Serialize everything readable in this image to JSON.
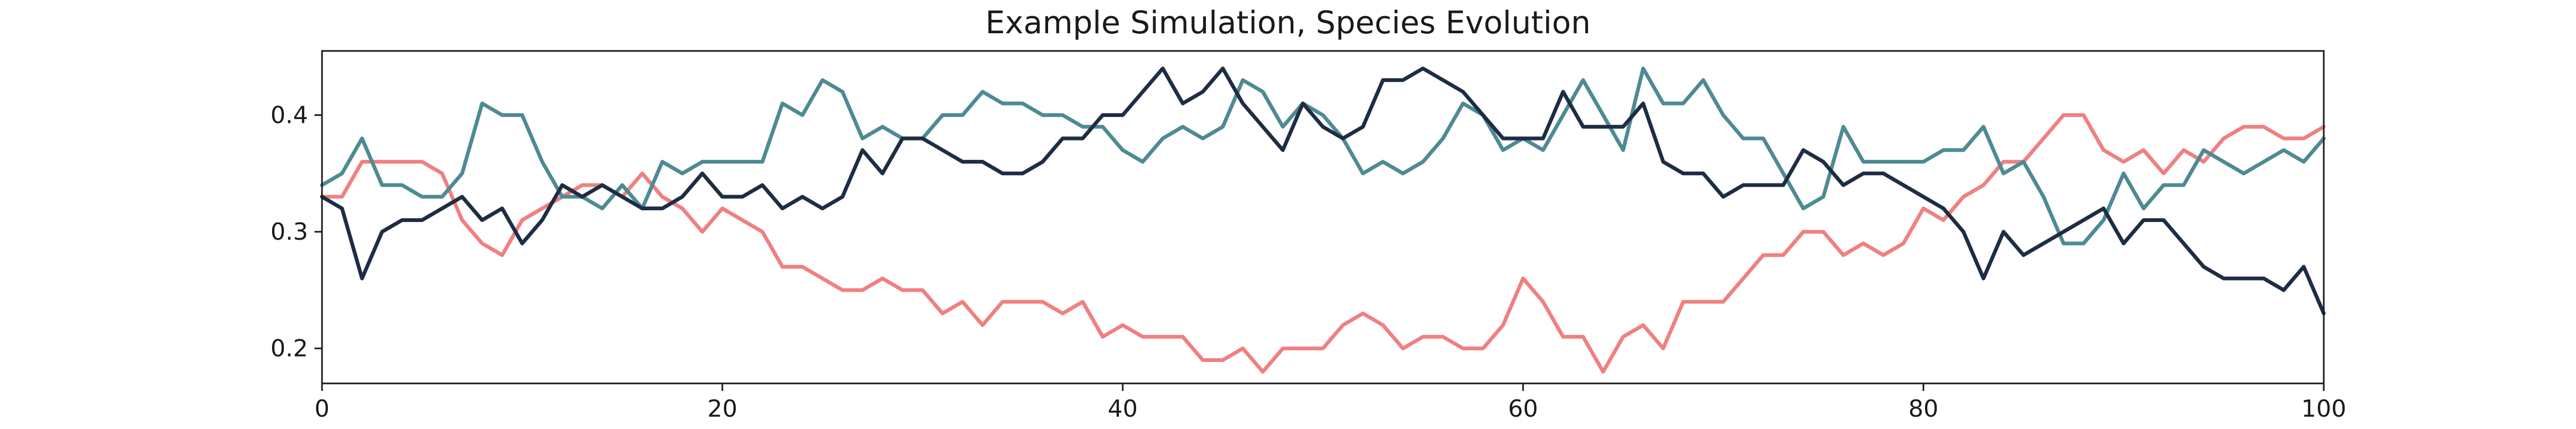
{
  "chart_data": {
    "type": "line",
    "title": "Example Simulation, Species Evolution",
    "xlabel": "",
    "ylabel": "",
    "xlim": [
      0,
      100
    ],
    "ylim": [
      0.17,
      0.455
    ],
    "xticks": [
      0,
      20,
      40,
      60,
      80,
      100
    ],
    "xtick_labels": [
      "0",
      "20",
      "40",
      "60",
      "80",
      "100"
    ],
    "yticks": [
      0.2,
      0.3,
      0.4
    ],
    "ytick_labels": [
      "0.2",
      "0.3",
      "0.4"
    ],
    "grid": false,
    "series": [
      {
        "color": "#f08080",
        "values": [
          0.33,
          0.33,
          0.36,
          0.36,
          0.36,
          0.36,
          0.35,
          0.31,
          0.29,
          0.28,
          0.31,
          0.32,
          0.33,
          0.34,
          0.34,
          0.33,
          0.35,
          0.33,
          0.32,
          0.3,
          0.32,
          0.31,
          0.3,
          0.27,
          0.27,
          0.26,
          0.25,
          0.25,
          0.26,
          0.25,
          0.25,
          0.23,
          0.24,
          0.22,
          0.24,
          0.24,
          0.24,
          0.23,
          0.24,
          0.21,
          0.22,
          0.21,
          0.21,
          0.21,
          0.19,
          0.19,
          0.2,
          0.18,
          0.2,
          0.2,
          0.2,
          0.22,
          0.23,
          0.22,
          0.2,
          0.21,
          0.21,
          0.2,
          0.2,
          0.22,
          0.26,
          0.24,
          0.21,
          0.21,
          0.18,
          0.21,
          0.22,
          0.2,
          0.24,
          0.24,
          0.24,
          0.26,
          0.28,
          0.28,
          0.3,
          0.3,
          0.28,
          0.29,
          0.28,
          0.29,
          0.32,
          0.31,
          0.33,
          0.34,
          0.36,
          0.36,
          0.38,
          0.4,
          0.4,
          0.37,
          0.36,
          0.37,
          0.35,
          0.37,
          0.36,
          0.38,
          0.39,
          0.39,
          0.38,
          0.38,
          0.39
        ]
      },
      {
        "color": "#4e8a94",
        "values": [
          0.34,
          0.35,
          0.38,
          0.34,
          0.34,
          0.33,
          0.33,
          0.35,
          0.41,
          0.4,
          0.4,
          0.36,
          0.33,
          0.33,
          0.32,
          0.34,
          0.32,
          0.36,
          0.35,
          0.36,
          0.36,
          0.36,
          0.36,
          0.41,
          0.4,
          0.43,
          0.42,
          0.38,
          0.39,
          0.38,
          0.38,
          0.4,
          0.4,
          0.42,
          0.41,
          0.41,
          0.4,
          0.4,
          0.39,
          0.39,
          0.37,
          0.36,
          0.38,
          0.39,
          0.38,
          0.39,
          0.43,
          0.42,
          0.39,
          0.41,
          0.4,
          0.38,
          0.35,
          0.36,
          0.35,
          0.36,
          0.38,
          0.41,
          0.4,
          0.37,
          0.38,
          0.37,
          0.4,
          0.43,
          0.4,
          0.37,
          0.44,
          0.41,
          0.41,
          0.43,
          0.4,
          0.38,
          0.38,
          0.35,
          0.32,
          0.33,
          0.39,
          0.36,
          0.36,
          0.36,
          0.36,
          0.37,
          0.37,
          0.39,
          0.35,
          0.36,
          0.33,
          0.29,
          0.29,
          0.31,
          0.35,
          0.32,
          0.34,
          0.34,
          0.37,
          0.36,
          0.35,
          0.36,
          0.37,
          0.36,
          0.38
        ]
      },
      {
        "color": "#1d2d44",
        "values": [
          0.33,
          0.32,
          0.26,
          0.3,
          0.31,
          0.31,
          0.32,
          0.33,
          0.31,
          0.32,
          0.29,
          0.31,
          0.34,
          0.33,
          0.34,
          0.33,
          0.32,
          0.32,
          0.33,
          0.35,
          0.33,
          0.33,
          0.34,
          0.32,
          0.33,
          0.32,
          0.33,
          0.37,
          0.35,
          0.38,
          0.38,
          0.37,
          0.36,
          0.36,
          0.35,
          0.35,
          0.36,
          0.38,
          0.38,
          0.4,
          0.4,
          0.42,
          0.44,
          0.41,
          0.42,
          0.44,
          0.41,
          0.39,
          0.37,
          0.41,
          0.39,
          0.38,
          0.39,
          0.43,
          0.43,
          0.44,
          0.43,
          0.42,
          0.4,
          0.38,
          0.38,
          0.38,
          0.42,
          0.39,
          0.39,
          0.39,
          0.41,
          0.36,
          0.35,
          0.35,
          0.33,
          0.34,
          0.34,
          0.34,
          0.37,
          0.36,
          0.34,
          0.35,
          0.35,
          0.34,
          0.33,
          0.32,
          0.3,
          0.26,
          0.3,
          0.28,
          0.29,
          0.3,
          0.31,
          0.32,
          0.29,
          0.31,
          0.31,
          0.29,
          0.27,
          0.26,
          0.26,
          0.26,
          0.25,
          0.27,
          0.23
        ]
      }
    ]
  }
}
